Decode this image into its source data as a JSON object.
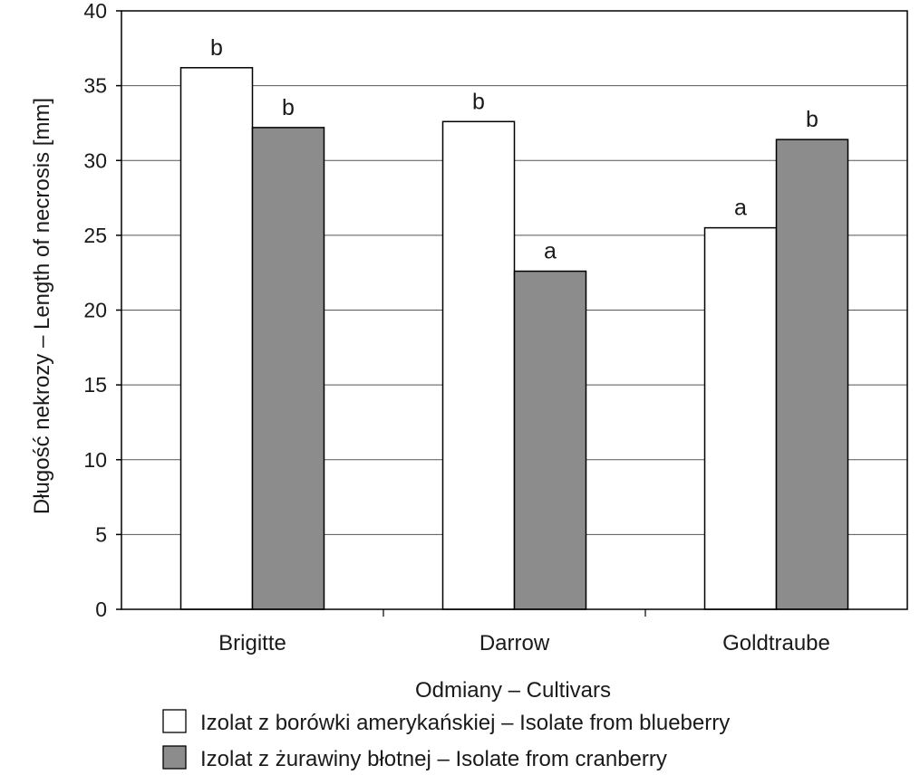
{
  "chart_data": {
    "type": "bar",
    "xlabel": "Odmiany – Cultivars",
    "ylabel": "Długość nekrozy – Length of necrosis [mm]",
    "categories": [
      "Brigitte",
      "Darrow",
      "Goldtraube"
    ],
    "ylim": [
      0,
      40
    ],
    "yticks": [
      "0",
      "5",
      "10",
      "15",
      "20",
      "25",
      "30",
      "35",
      "40"
    ],
    "grid": true,
    "legend_position": "bottom",
    "series": [
      {
        "name": "Izolat z borówki amerykańskiej – Isolate from blueberry",
        "color": "#ffffff",
        "values": [
          36.2,
          32.6,
          25.5
        ],
        "labels": [
          "b",
          "b",
          "a"
        ]
      },
      {
        "name": "Izolat z żurawiny błotnej – Isolate from cranberry",
        "color": "#8c8c8c",
        "values": [
          32.2,
          22.6,
          31.4
        ],
        "labels": [
          "b",
          "a",
          "b"
        ]
      }
    ]
  }
}
